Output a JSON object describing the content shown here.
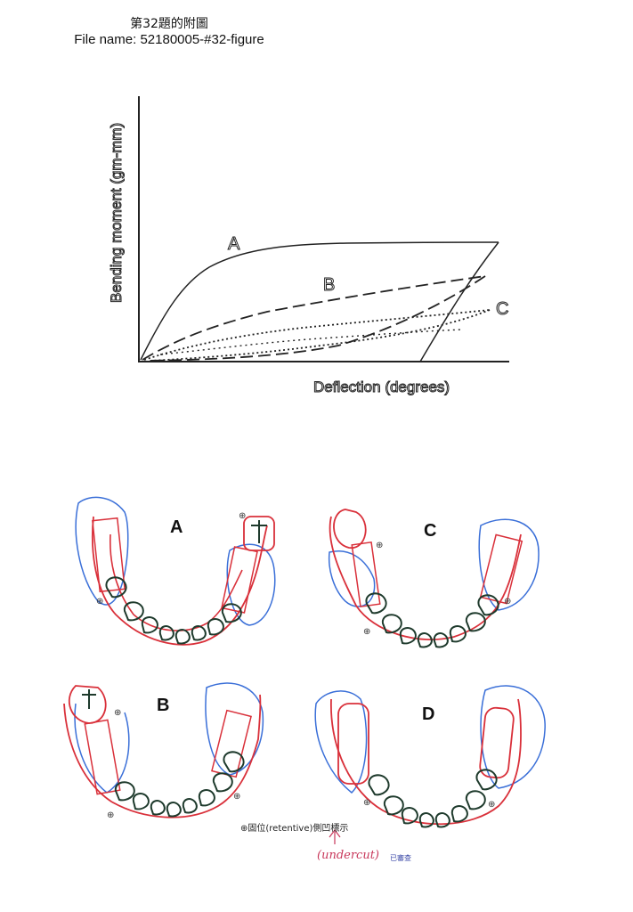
{
  "header": {
    "question_title": "第32題的附圖",
    "file_name": "File name: 52180005-#32-figure"
  },
  "graph": {
    "y_axis_label": "Bending moment (gm-mm)",
    "x_axis_label": "Deflection (degrees)",
    "curve_labels": {
      "a": "A",
      "b": "B",
      "c": "C"
    }
  },
  "arches": {
    "a": "A",
    "b": "B",
    "c": "C",
    "d": "D"
  },
  "notes": {
    "retentive": "⊕固位(retentive)側凹標示",
    "undercut": "(undercut)",
    "stamp": "已審查"
  },
  "colors": {
    "framework_red": "#d9303a",
    "outline_blue": "#3a6fd8",
    "tooth_dark": "#1e3a2c"
  }
}
